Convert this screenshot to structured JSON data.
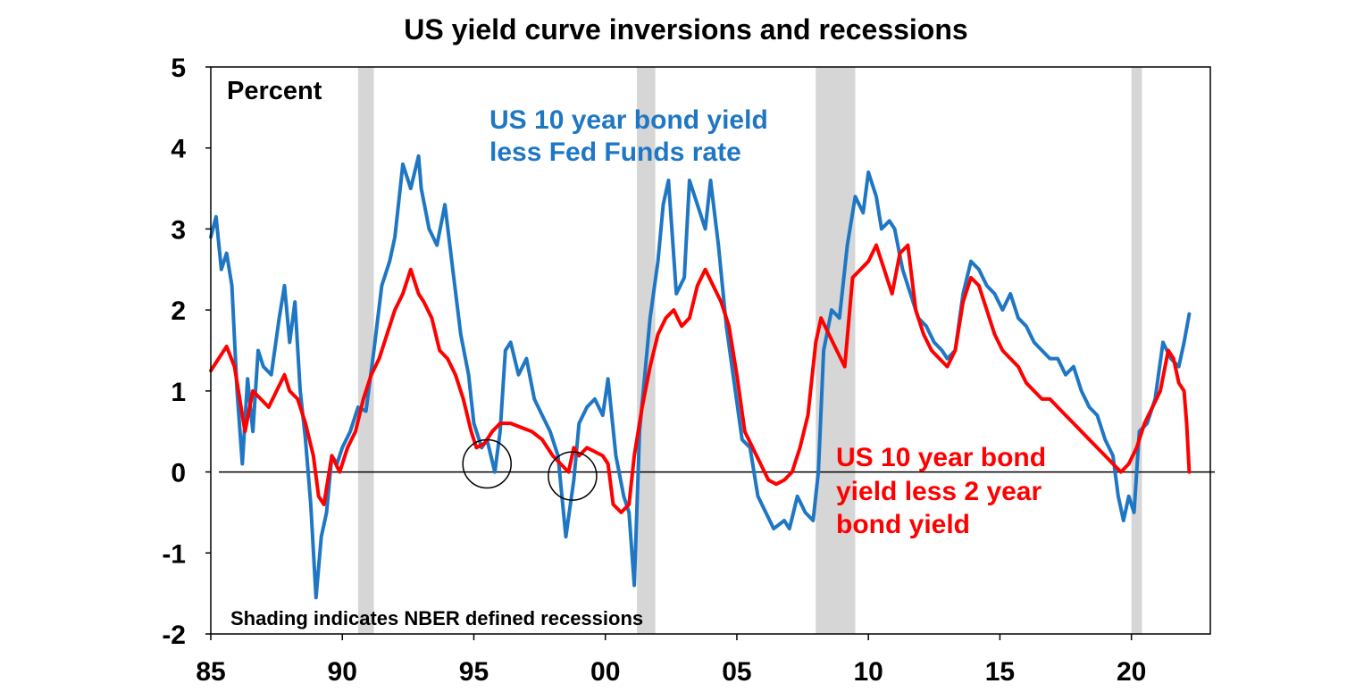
{
  "chart_data": {
    "type": "line",
    "title": "US yield curve inversions and recessions",
    "ylabel": "Percent",
    "xlabel": "",
    "xlim": [
      1985,
      2023
    ],
    "ylim": [
      -2,
      5
    ],
    "x_tick_values": [
      1985,
      1990,
      1995,
      2000,
      2005,
      2010,
      2015,
      2020
    ],
    "x_tick_labels": [
      "85",
      "90",
      "95",
      "00",
      "05",
      "10",
      "15",
      "20"
    ],
    "y_ticks": [
      -2,
      -1,
      0,
      1,
      2,
      3,
      4,
      5
    ],
    "grid": false,
    "zero_line": true,
    "recession_note": "Shading indicates NBER defined recessions",
    "recessions": [
      {
        "start": 1990.6,
        "end": 1991.2
      },
      {
        "start": 2001.2,
        "end": 2001.9
      },
      {
        "start": 2008.0,
        "end": 2009.5
      },
      {
        "start": 2020.0,
        "end": 2020.4
      }
    ],
    "inversion_markers": [
      {
        "x": 1995.5,
        "y": 0.1
      },
      {
        "x": 1998.75,
        "y": -0.05
      }
    ],
    "series": [
      {
        "name": "US 10 year bond yield less Fed Funds rate",
        "label_lines": [
          "US 10 year bond yield",
          "less Fed Funds rate"
        ],
        "color": "#1f77c4",
        "x": [
          1985.0,
          1985.2,
          1985.4,
          1985.6,
          1985.8,
          1986.0,
          1986.2,
          1986.4,
          1986.6,
          1986.8,
          1987.0,
          1987.3,
          1987.6,
          1987.8,
          1988.0,
          1988.2,
          1988.4,
          1988.6,
          1988.8,
          1989.0,
          1989.2,
          1989.4,
          1989.6,
          1989.8,
          1990.0,
          1990.3,
          1990.6,
          1990.9,
          1991.2,
          1991.5,
          1991.8,
          1992.0,
          1992.3,
          1992.6,
          1992.9,
          1993.0,
          1993.3,
          1993.6,
          1993.9,
          1994.2,
          1994.5,
          1994.8,
          1995.0,
          1995.3,
          1995.5,
          1995.8,
          1996.0,
          1996.2,
          1996.4,
          1996.7,
          1997.0,
          1997.3,
          1997.6,
          1997.9,
          1998.2,
          1998.5,
          1998.8,
          1999.0,
          1999.3,
          1999.6,
          1999.9,
          2000.1,
          2000.4,
          2000.7,
          2000.9,
          2001.1,
          2001.3,
          2001.5,
          2001.7,
          2002.0,
          2002.2,
          2002.4,
          2002.7,
          2003.0,
          2003.2,
          2003.5,
          2003.8,
          2004.0,
          2004.3,
          2004.6,
          2004.9,
          2005.2,
          2005.5,
          2005.8,
          2006.1,
          2006.4,
          2006.8,
          2007.0,
          2007.3,
          2007.6,
          2007.9,
          2008.1,
          2008.3,
          2008.6,
          2008.9,
          2009.2,
          2009.5,
          2009.8,
          2010.0,
          2010.3,
          2010.5,
          2010.8,
          2011.0,
          2011.3,
          2011.6,
          2011.9,
          2012.2,
          2012.5,
          2012.8,
          2013.0,
          2013.3,
          2013.6,
          2013.9,
          2014.2,
          2014.5,
          2014.8,
          2015.1,
          2015.4,
          2015.7,
          2016.0,
          2016.3,
          2016.6,
          2016.9,
          2017.2,
          2017.5,
          2017.8,
          2018.1,
          2018.4,
          2018.7,
          2019.0,
          2019.3,
          2019.5,
          2019.7,
          2019.9,
          2020.1,
          2020.3,
          2020.6,
          2020.9,
          2021.2,
          2021.5,
          2021.8,
          2022.0,
          2022.2
        ],
        "y": [
          2.9,
          3.15,
          2.5,
          2.7,
          2.3,
          1.0,
          0.1,
          1.15,
          0.5,
          1.5,
          1.3,
          1.2,
          1.9,
          2.3,
          1.6,
          2.1,
          1.0,
          0.4,
          -0.4,
          -1.55,
          -0.8,
          -0.5,
          0.2,
          0.1,
          0.3,
          0.5,
          0.8,
          0.75,
          1.5,
          2.3,
          2.6,
          2.9,
          3.8,
          3.5,
          3.9,
          3.5,
          3.0,
          2.8,
          3.3,
          2.5,
          1.7,
          1.2,
          0.6,
          0.3,
          0.4,
          0.0,
          0.5,
          1.5,
          1.6,
          1.2,
          1.4,
          0.9,
          0.7,
          0.5,
          0.2,
          -0.8,
          -0.1,
          0.6,
          0.8,
          0.9,
          0.7,
          1.15,
          0.2,
          -0.3,
          -0.5,
          -1.4,
          0.5,
          1.2,
          1.9,
          2.6,
          3.3,
          3.6,
          2.2,
          2.4,
          3.6,
          3.3,
          3.0,
          3.6,
          2.8,
          1.8,
          1.1,
          0.4,
          0.3,
          -0.3,
          -0.5,
          -0.7,
          -0.6,
          -0.7,
          -0.3,
          -0.5,
          -0.6,
          0.0,
          1.5,
          2.0,
          1.9,
          2.8,
          3.4,
          3.2,
          3.7,
          3.4,
          3.0,
          3.1,
          3.0,
          2.5,
          2.2,
          1.9,
          1.8,
          1.6,
          1.5,
          1.4,
          1.5,
          2.2,
          2.6,
          2.5,
          2.3,
          2.2,
          2.0,
          2.2,
          1.9,
          1.8,
          1.6,
          1.5,
          1.4,
          1.4,
          1.2,
          1.3,
          1.0,
          0.8,
          0.7,
          0.4,
          0.2,
          -0.3,
          -0.6,
          -0.3,
          -0.5,
          0.5,
          0.6,
          0.9,
          1.6,
          1.4,
          1.3,
          1.6,
          1.95
        ]
      },
      {
        "name": "US 10 year bond yield less 2 year bond yield",
        "label_lines": [
          "US 10 year bond",
          "yield less 2 year",
          "bond yield"
        ],
        "color": "#ff0000",
        "x": [
          1985.0,
          1985.3,
          1985.6,
          1985.9,
          1986.1,
          1986.3,
          1986.6,
          1986.9,
          1987.2,
          1987.5,
          1987.8,
          1988.0,
          1988.3,
          1988.6,
          1988.9,
          1989.1,
          1989.3,
          1989.6,
          1989.9,
          1990.2,
          1990.5,
          1990.8,
          1991.1,
          1991.4,
          1991.7,
          1992.0,
          1992.3,
          1992.6,
          1992.9,
          1993.1,
          1993.4,
          1993.7,
          1994.0,
          1994.3,
          1994.6,
          1994.9,
          1995.1,
          1995.4,
          1995.7,
          1996.0,
          1996.4,
          1996.8,
          1997.2,
          1997.6,
          1998.0,
          1998.3,
          1998.6,
          1998.8,
          1999.0,
          1999.3,
          1999.6,
          1999.9,
          2000.1,
          2000.3,
          2000.6,
          2000.9,
          2001.1,
          2001.4,
          2001.7,
          2002.0,
          2002.3,
          2002.6,
          2002.9,
          2003.2,
          2003.5,
          2003.8,
          2004.1,
          2004.4,
          2004.7,
          2005.0,
          2005.3,
          2005.6,
          2005.9,
          2006.2,
          2006.5,
          2006.8,
          2007.1,
          2007.4,
          2007.7,
          2008.0,
          2008.2,
          2008.5,
          2008.8,
          2009.1,
          2009.4,
          2009.7,
          2010.0,
          2010.3,
          2010.6,
          2010.9,
          2011.2,
          2011.5,
          2011.8,
          2012.1,
          2012.4,
          2012.7,
          2013.0,
          2013.3,
          2013.6,
          2013.9,
          2014.2,
          2014.5,
          2014.8,
          2015.1,
          2015.4,
          2015.7,
          2016.0,
          2016.3,
          2016.6,
          2016.9,
          2017.2,
          2017.5,
          2017.8,
          2018.1,
          2018.4,
          2018.7,
          2019.0,
          2019.3,
          2019.6,
          2019.9,
          2020.2,
          2020.5,
          2020.8,
          2021.1,
          2021.4,
          2021.6,
          2021.8,
          2022.0,
          2022.1,
          2022.2
        ],
        "y": [
          1.25,
          1.4,
          1.55,
          1.3,
          0.9,
          0.5,
          1.0,
          0.9,
          0.8,
          1.0,
          1.2,
          1.0,
          0.9,
          0.6,
          0.2,
          -0.3,
          -0.4,
          0.2,
          0.0,
          0.3,
          0.5,
          0.9,
          1.2,
          1.4,
          1.7,
          2.0,
          2.2,
          2.5,
          2.2,
          2.1,
          1.9,
          1.5,
          1.4,
          1.2,
          0.9,
          0.5,
          0.3,
          0.35,
          0.5,
          0.6,
          0.6,
          0.55,
          0.5,
          0.4,
          0.2,
          0.1,
          0.0,
          0.3,
          0.2,
          0.3,
          0.25,
          0.2,
          0.1,
          -0.4,
          -0.5,
          -0.4,
          0.2,
          0.8,
          1.3,
          1.7,
          1.9,
          2.0,
          1.8,
          1.9,
          2.3,
          2.5,
          2.3,
          2.1,
          1.8,
          1.2,
          0.5,
          0.3,
          0.1,
          -0.1,
          -0.15,
          -0.1,
          0.0,
          0.3,
          0.7,
          1.6,
          1.9,
          1.7,
          1.5,
          1.3,
          2.4,
          2.5,
          2.6,
          2.8,
          2.5,
          2.2,
          2.7,
          2.8,
          2.0,
          1.7,
          1.5,
          1.4,
          1.3,
          1.5,
          2.1,
          2.4,
          2.3,
          2.0,
          1.7,
          1.5,
          1.4,
          1.3,
          1.1,
          1.0,
          0.9,
          0.9,
          0.8,
          0.7,
          0.6,
          0.5,
          0.4,
          0.3,
          0.2,
          0.1,
          0.0,
          0.1,
          0.3,
          0.6,
          0.8,
          1.0,
          1.5,
          1.4,
          1.1,
          1.0,
          0.6,
          0.0
        ]
      }
    ]
  }
}
